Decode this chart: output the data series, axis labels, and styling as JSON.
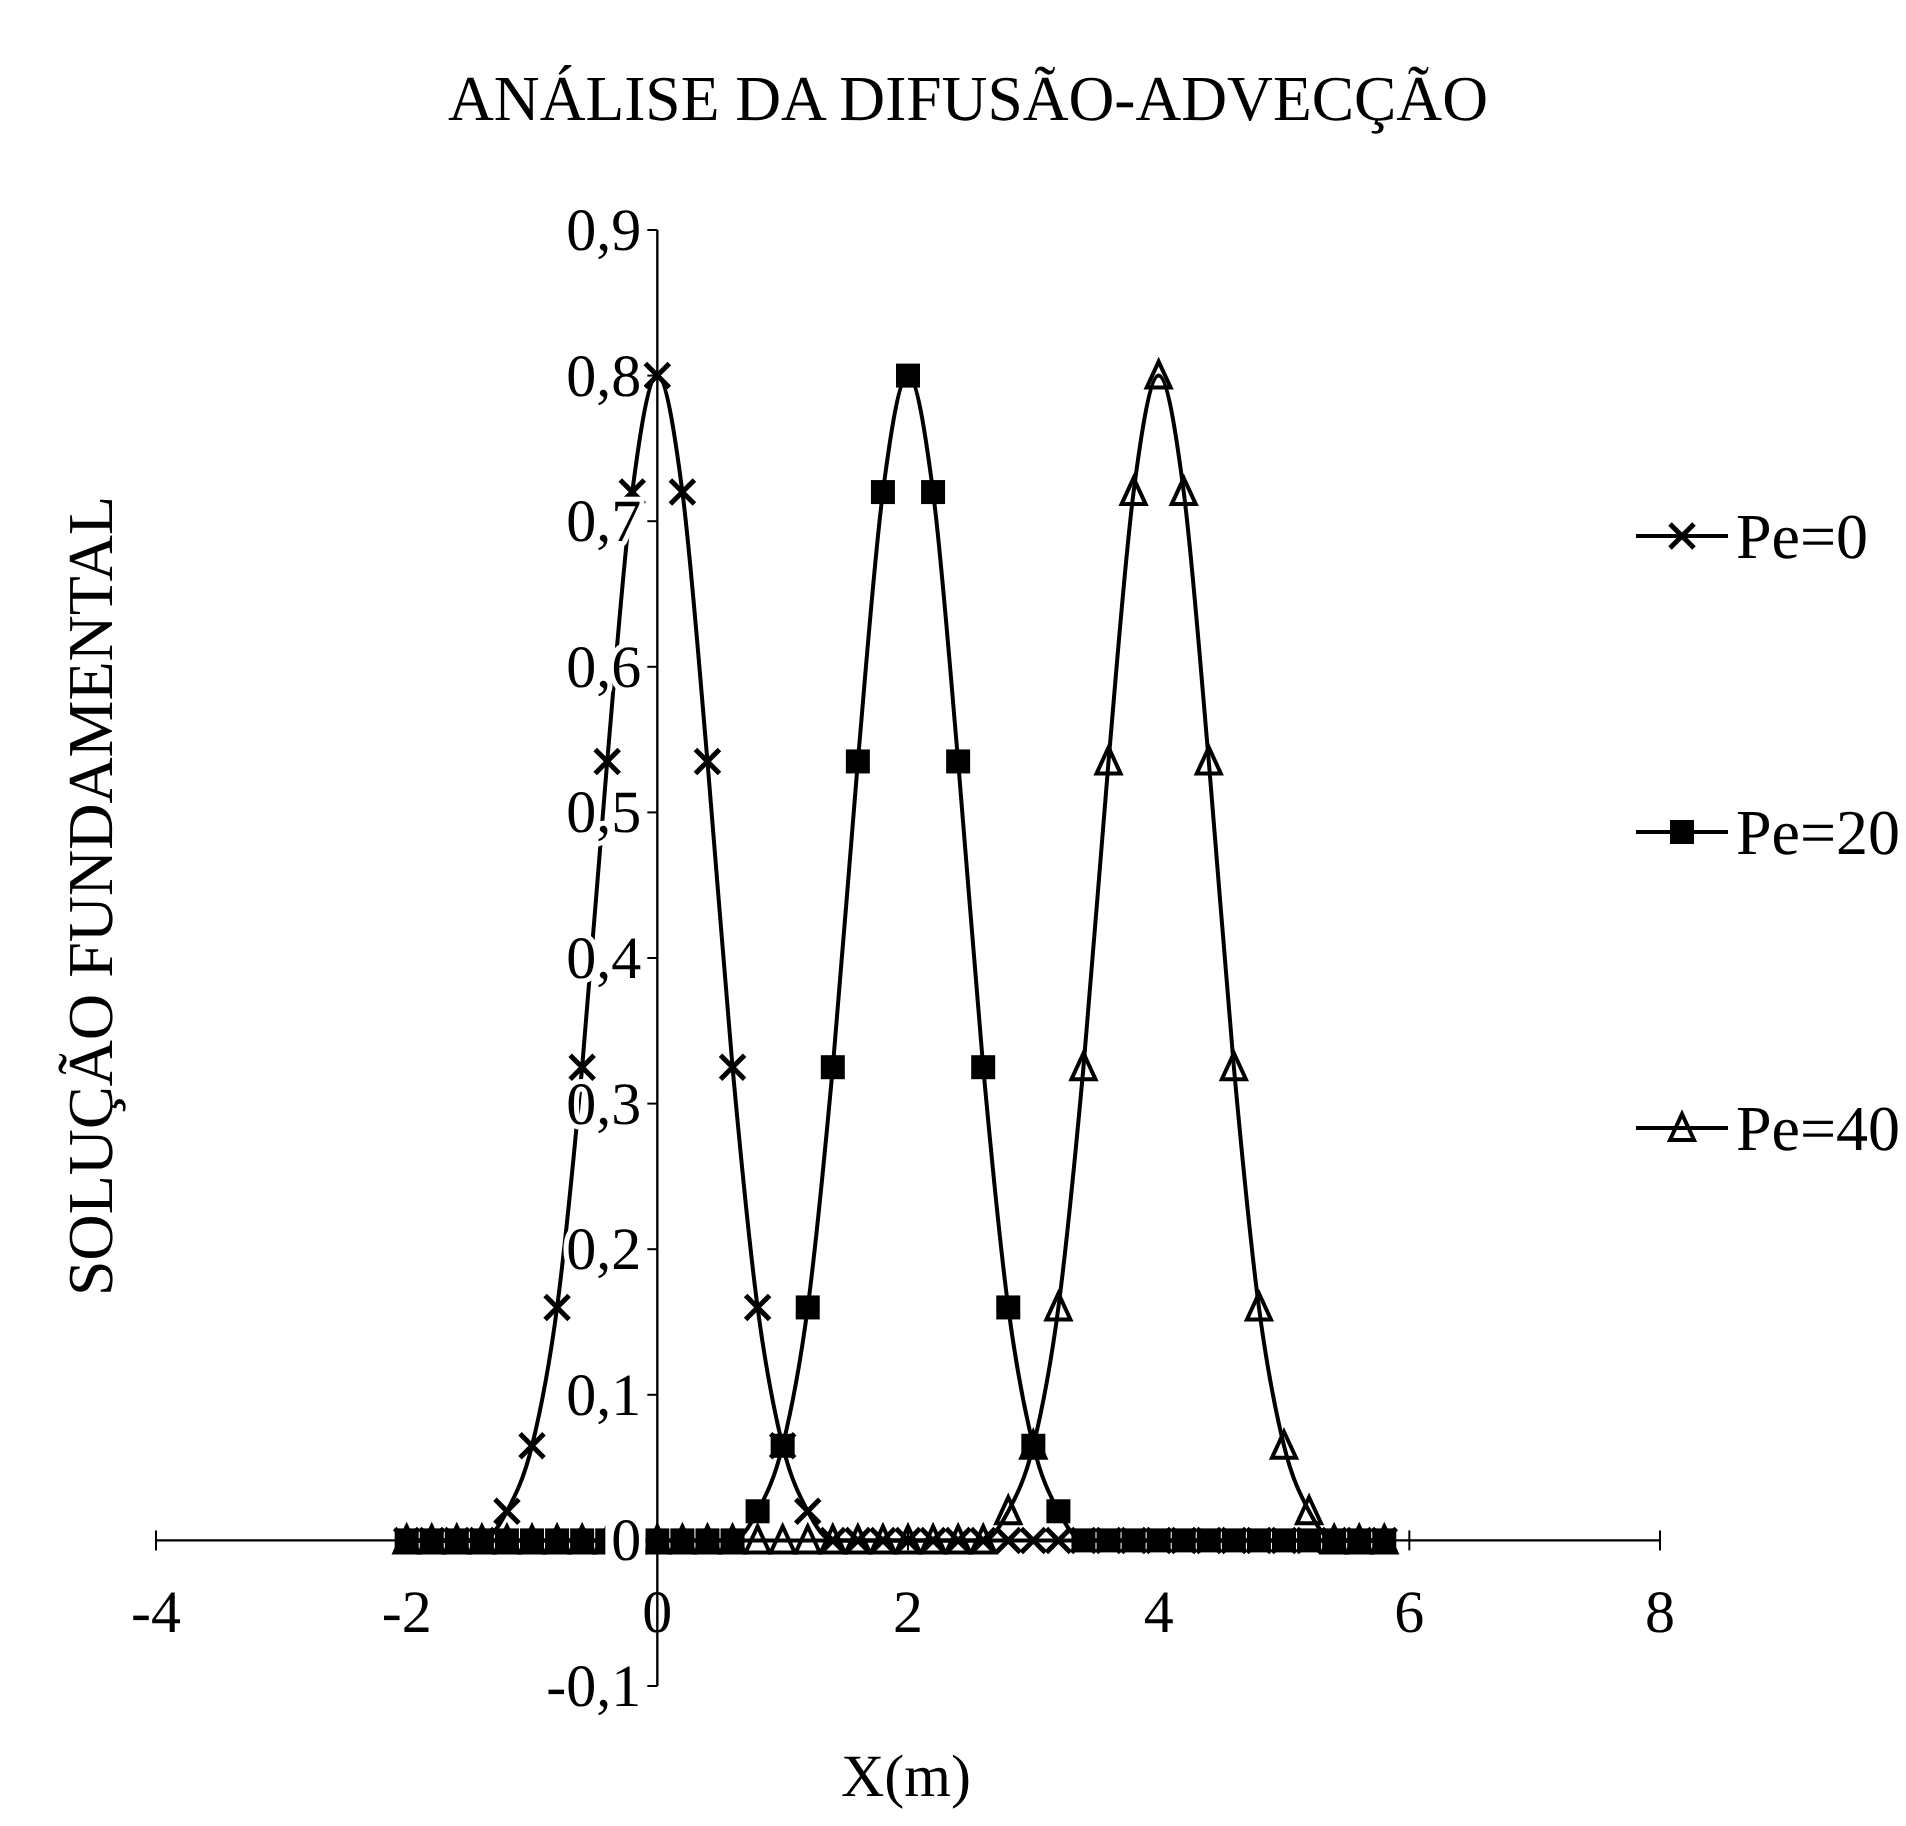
{
  "chart_data": {
    "type": "line",
    "title": "ANÁLISE DA DIFUSÃO-ADVECÇÃO",
    "xlabel": "X(m)",
    "ylabel": "SOLUÇÃO FUNDAMENTAL",
    "x": [
      -2,
      -1.8,
      -1.6,
      -1.4,
      -1.2,
      -1,
      -0.8,
      -0.6,
      -0.4,
      -0.2,
      0,
      0.2,
      0.4,
      0.6,
      0.8,
      1,
      1.2,
      1.4,
      1.6,
      1.8,
      2,
      2.2,
      2.4,
      2.6,
      2.8,
      3,
      3.2,
      3.4,
      3.6,
      3.8,
      4,
      4.2,
      4.4,
      4.6,
      4.8,
      5,
      5.2,
      5.4,
      5.6,
      5.8
    ],
    "series": [
      {
        "name": "Pe=0",
        "color": "#000000",
        "marker": "cross",
        "values": [
          0,
          0,
          0,
          0,
          0.02,
          0.065,
          0.16,
          0.325,
          0.535,
          0.72,
          0.8,
          0.72,
          0.535,
          0.325,
          0.16,
          0.065,
          0.02,
          0,
          0,
          0,
          0,
          0,
          0,
          0,
          0,
          0,
          0,
          0,
          0,
          0,
          0,
          0,
          0,
          0,
          0,
          0,
          0,
          0,
          0,
          0
        ]
      },
      {
        "name": "Pe=20",
        "color": "#000000",
        "marker": "square",
        "values": [
          0,
          0,
          0,
          0,
          0,
          0,
          0,
          0,
          0,
          0,
          0,
          0,
          0,
          0,
          0.02,
          0.065,
          0.16,
          0.325,
          0.535,
          0.72,
          0.8,
          0.72,
          0.535,
          0.325,
          0.16,
          0.065,
          0.02,
          0,
          0,
          0,
          0,
          0,
          0,
          0,
          0,
          0,
          0,
          0,
          0,
          0
        ]
      },
      {
        "name": "Pe=40",
        "color": "#000000",
        "marker": "triangle",
        "values": [
          0,
          0,
          0,
          0,
          0,
          0,
          0,
          0,
          0,
          0,
          0,
          0,
          0,
          0,
          0,
          0,
          0,
          0,
          0,
          0,
          0,
          0,
          0,
          0,
          0.02,
          0.065,
          0.16,
          0.325,
          0.535,
          0.72,
          0.8,
          0.72,
          0.535,
          0.325,
          0.16,
          0.065,
          0.02,
          0,
          0,
          0
        ]
      }
    ],
    "xlim": [
      -4,
      8
    ],
    "xticks": [
      -4,
      -2,
      0,
      2,
      4,
      6,
      8
    ],
    "ylim": [
      -0.1,
      0.9
    ],
    "yticks": [
      {
        "value": -0.1,
        "label": "-0,1"
      },
      0,
      {
        "value": 0.1,
        "label": "0,1"
      },
      {
        "value": 0.2,
        "label": "0,2"
      },
      {
        "value": 0.3,
        "label": "0,3"
      },
      {
        "value": 0.4,
        "label": "0,4"
      },
      {
        "value": 0.5,
        "label": "0,5"
      },
      {
        "value": 0.6,
        "label": "0,6"
      },
      {
        "value": 0.7,
        "label": "0,7"
      },
      {
        "value": 0.8,
        "label": "0,8"
      },
      {
        "value": 0.9,
        "label": "0,9"
      }
    ],
    "grid": false,
    "legend": "right",
    "line_style": "solid"
  }
}
